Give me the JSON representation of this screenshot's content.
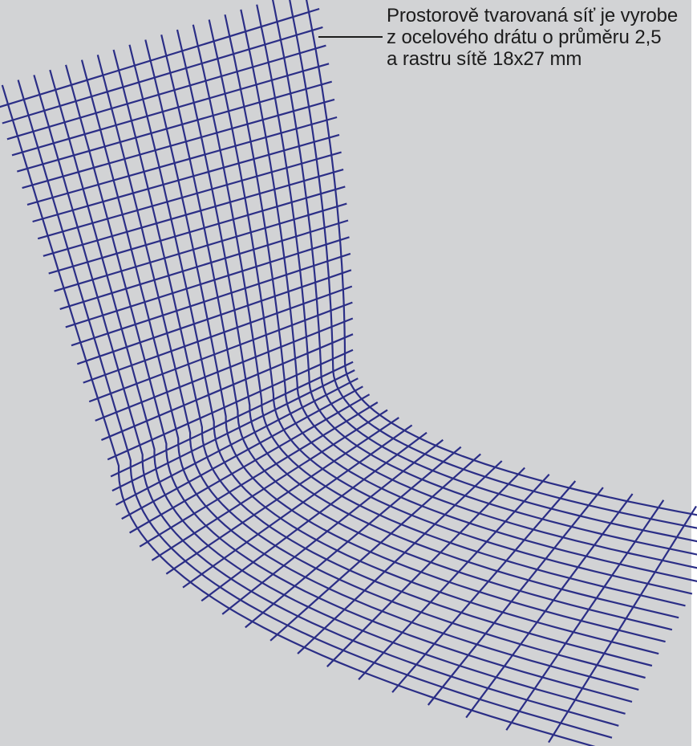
{
  "caption": {
    "lines": [
      "Prostorově tvarovaná síť je vyrobe",
      "z ocelového drátu o průměru 2,5",
      "a rastru sítě 18x27 mm"
    ]
  },
  "colors": {
    "background": "#d2d3d5",
    "wire": "#2b2e86",
    "text": "#1c1c1c"
  },
  "figure": {
    "subject": "wire-mesh-shell",
    "shape": "curved-L"
  }
}
